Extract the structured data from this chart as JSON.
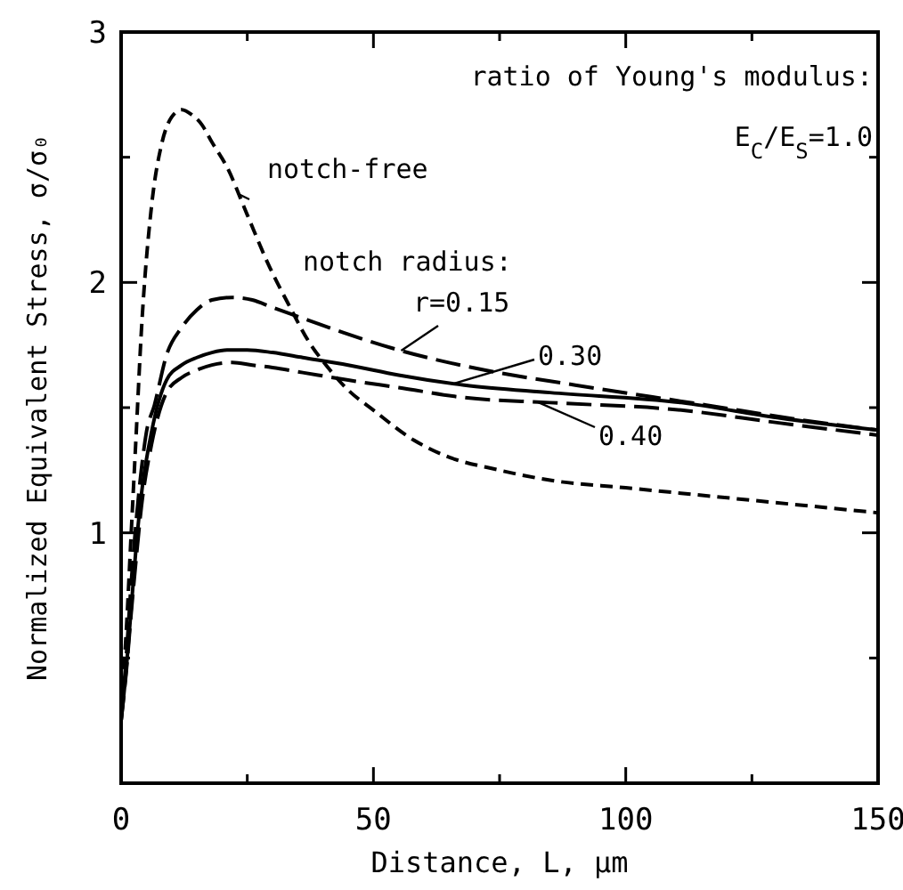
{
  "chart_data": {
    "type": "line",
    "xlabel": "Distance, L, μm",
    "ylabel": "Normalized Equivalent Stress, σ/σ₀",
    "annotations": [
      "ratio of Young's modulus:",
      "E$_{C}$/E$_{S}$=1.0",
      "notch radius:"
    ],
    "xlim": [
      0,
      150
    ],
    "xticks": [
      0,
      {
        "value": 25,
        "label": null
      },
      50,
      {
        "value": 75,
        "label": null
      },
      100,
      {
        "value": 125,
        "label": null
      },
      150
    ],
    "ylim": [
      0,
      3
    ],
    "yticks": [
      {
        "value": 0,
        "label": null
      },
      {
        "value": 0.5,
        "label": null
      },
      1,
      {
        "value": 1.5,
        "label": null
      },
      2,
      {
        "value": 2.5,
        "label": null
      },
      3
    ],
    "grid": false,
    "series": [
      {
        "name": "notch-free",
        "color": "#000000",
        "line_style": "dashed",
        "x": [
          0,
          1,
          2,
          3,
          4,
          6,
          8,
          10,
          12,
          14,
          16,
          18,
          21,
          25,
          29,
          33.5,
          37,
          41,
          45,
          50,
          58,
          64,
          75,
          85,
          100,
          125,
          150
        ],
        "values": [
          0.3,
          0.6,
          1.0,
          1.4,
          1.8,
          2.3,
          2.55,
          2.66,
          2.69,
          2.67,
          2.63,
          2.56,
          2.46,
          2.27,
          2.08,
          1.9,
          1.77,
          1.66,
          1.57,
          1.49,
          1.37,
          1.31,
          1.25,
          1.21,
          1.18,
          1.13,
          1.08
        ]
      },
      {
        "name": "r=0.15",
        "color": "#000000",
        "line_style": "longdash",
        "x": [
          0,
          1,
          2,
          3,
          4,
          5,
          6.6,
          9,
          12,
          15,
          18,
          22,
          26,
          30,
          37,
          44,
          55,
          72,
          90,
          116,
          135,
          150
        ],
        "values": [
          0.25,
          0.5,
          0.8,
          1.05,
          1.25,
          1.4,
          1.51,
          1.71,
          1.82,
          1.89,
          1.93,
          1.94,
          1.93,
          1.9,
          1.85,
          1.8,
          1.73,
          1.65,
          1.59,
          1.51,
          1.45,
          1.41
        ]
      },
      {
        "name": "0.30",
        "color": "#000000",
        "line_style": "solid",
        "x": [
          0,
          1,
          2,
          3,
          4,
          6,
          9,
          12,
          15,
          18,
          21,
          25,
          30,
          36,
          45,
          55,
          68,
          85,
          111,
          130,
          150
        ],
        "values": [
          0.25,
          0.45,
          0.7,
          0.95,
          1.15,
          1.4,
          1.61,
          1.67,
          1.7,
          1.72,
          1.73,
          1.73,
          1.72,
          1.7,
          1.67,
          1.63,
          1.59,
          1.56,
          1.52,
          1.46,
          1.41
        ]
      },
      {
        "name": "0.40",
        "color": "#000000",
        "line_style": "longdash",
        "x": [
          0,
          1,
          2,
          3,
          4,
          6,
          9,
          12,
          15,
          18,
          22,
          26,
          30,
          36,
          45,
          55,
          68,
          85,
          111,
          130,
          150
        ],
        "values": [
          0.25,
          0.44,
          0.68,
          0.9,
          1.1,
          1.35,
          1.56,
          1.62,
          1.65,
          1.67,
          1.68,
          1.67,
          1.66,
          1.64,
          1.61,
          1.58,
          1.54,
          1.52,
          1.49,
          1.44,
          1.39
        ]
      }
    ]
  }
}
